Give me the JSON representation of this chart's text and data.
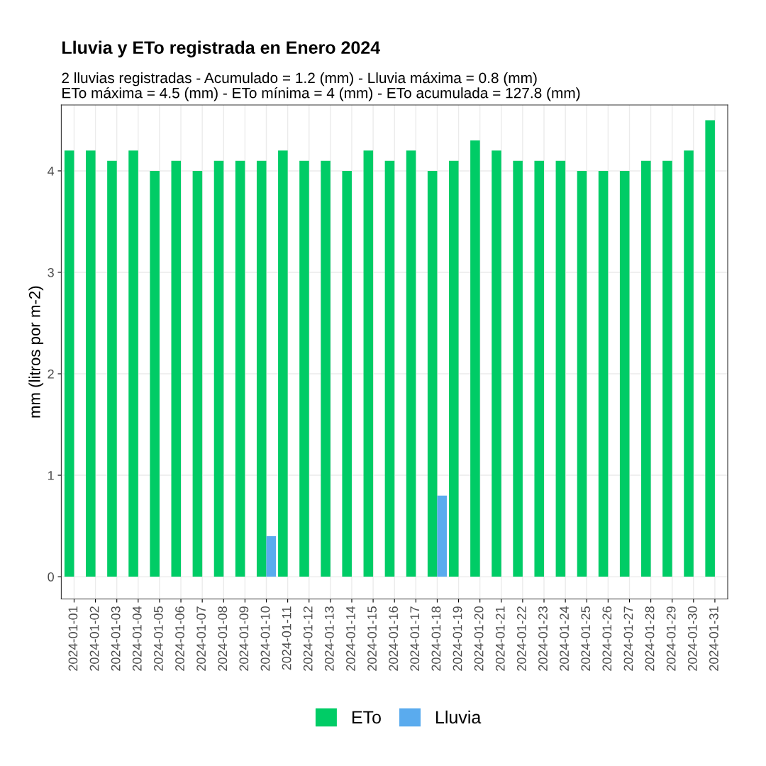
{
  "chart_data": {
    "type": "bar",
    "title": "Lluvia y ETo registrada en Enero 2024",
    "subtitle": "2 lluvias registradas - Acumulado = 1.2 (mm) - Lluvia máxima = 0.8 (mm)\nETo máxima = 4.5 (mm) - ETo mínima = 4 (mm) - ETo acumulada = 127.8 (mm)",
    "ylabel": "mm (litros por m-2)",
    "categories": [
      "2024-01-01",
      "2024-01-02",
      "2024-01-03",
      "2024-01-04",
      "2024-01-05",
      "2024-01-06",
      "2024-01-07",
      "2024-01-08",
      "2024-01-09",
      "2024-01-10",
      "2024-01-11",
      "2024-01-12",
      "2024-01-13",
      "2024-01-14",
      "2024-01-15",
      "2024-01-16",
      "2024-01-17",
      "2024-01-18",
      "2024-01-19",
      "2024-01-20",
      "2024-01-21",
      "2024-01-22",
      "2024-01-23",
      "2024-01-24",
      "2024-01-25",
      "2024-01-26",
      "2024-01-27",
      "2024-01-28",
      "2024-01-29",
      "2024-01-30",
      "2024-01-31"
    ],
    "series": [
      {
        "name": "ETo",
        "color": "#00cc66",
        "values": [
          4.2,
          4.2,
          4.1,
          4.2,
          4.0,
          4.1,
          4.0,
          4.1,
          4.1,
          4.1,
          4.2,
          4.1,
          4.1,
          4.0,
          4.2,
          4.1,
          4.2,
          4.0,
          4.1,
          4.3,
          4.2,
          4.1,
          4.1,
          4.1,
          4.0,
          4.0,
          4.0,
          4.1,
          4.1,
          4.2,
          4.5
        ]
      },
      {
        "name": "Lluvia",
        "color": "#5aabee",
        "values": [
          null,
          null,
          null,
          null,
          null,
          null,
          null,
          null,
          null,
          0.4,
          null,
          null,
          null,
          null,
          null,
          null,
          null,
          0.8,
          null,
          null,
          null,
          null,
          null,
          null,
          null,
          null,
          null,
          null,
          null,
          null,
          null
        ]
      }
    ],
    "ylim": [
      -0.22,
      4.65
    ],
    "yticks": [
      0,
      1,
      2,
      3,
      4
    ],
    "grid": true,
    "legend": "bottom"
  }
}
